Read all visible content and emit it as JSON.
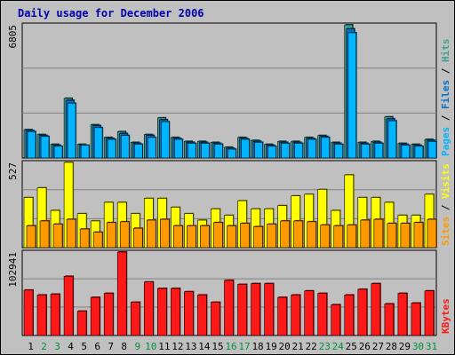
{
  "chart_data": {
    "type": "bar",
    "title": "Daily usage for December 2006",
    "categories": [
      "1",
      "2",
      "3",
      "4",
      "5",
      "6",
      "7",
      "8",
      "9",
      "10",
      "11",
      "12",
      "13",
      "14",
      "15",
      "16",
      "17",
      "18",
      "19",
      "20",
      "21",
      "22",
      "23",
      "24",
      "25",
      "26",
      "27",
      "28",
      "29",
      "30",
      "31"
    ],
    "weekend_days": [
      "2",
      "3",
      "9",
      "10",
      "16",
      "17",
      "23",
      "24",
      "30",
      "31"
    ],
    "colors": {
      "background": "#c0c0c0",
      "plot_bg": "#c0c0c0",
      "title": "#0000aa",
      "pages": "#00b4ff",
      "files": "#0070c8",
      "hits": "#3f9f8f",
      "sites": "#ff9900",
      "visits": "#ffff00",
      "kbytes": "#ff1818",
      "weekday_label": "#000000",
      "weekend_label": "#00903f"
    },
    "panels": [
      {
        "name": "Pages/Files/Hits",
        "ymax_label": "6805",
        "ymax": 6805,
        "axis_labels": [
          {
            "text": "Pages",
            "color": "#00b4ff"
          },
          {
            "text": " / ",
            "color": "#000000"
          },
          {
            "text": "Files",
            "color": "#0070c8"
          },
          {
            "text": " / ",
            "color": "#000000"
          },
          {
            "text": "Hits",
            "color": "#3f9f8f"
          }
        ],
        "series": [
          {
            "name": "Hits",
            "values": [
              1450,
              1200,
              700,
              3050,
              700,
              1700,
              1050,
              1350,
              800,
              1200,
              2050,
              1050,
              850,
              850,
              800,
              550,
              1050,
              900,
              700,
              850,
              850,
              1050,
              1150,
              800,
              6805,
              800,
              850,
              2100,
              750,
              700,
              950
            ]
          },
          {
            "name": "Files",
            "values": [
              1400,
              1150,
              650,
              2950,
              650,
              1650,
              1000,
              1250,
              750,
              1150,
              1950,
              1000,
              800,
              800,
              750,
              500,
              1000,
              850,
              650,
              800,
              800,
              1000,
              1100,
              750,
              6600,
              750,
              800,
              2000,
              700,
              650,
              900
            ]
          },
          {
            "name": "Pages",
            "values": [
              1350,
              1100,
              600,
              2800,
              650,
              1550,
              950,
              1150,
              700,
              1050,
              1850,
              950,
              750,
              750,
              700,
              450,
              950,
              800,
              600,
              750,
              750,
              950,
              1050,
              700,
              6400,
              700,
              750,
              1900,
              650,
              600,
              850
            ]
          }
        ]
      },
      {
        "name": "Sites/Visits",
        "ymax_label": "527",
        "ymax": 527,
        "axis_labels": [
          {
            "text": "Sites",
            "color": "#ff9900"
          },
          {
            "text": " / ",
            "color": "#000000"
          },
          {
            "text": "Visits",
            "color": "#ffff00"
          }
        ],
        "series": [
          {
            "name": "Visits",
            "values": [
              310,
              370,
              230,
              527,
              210,
              165,
              280,
              280,
              210,
              305,
              305,
              250,
              210,
              170,
              240,
              200,
              290,
              240,
              240,
              260,
              320,
              330,
              360,
              230,
              450,
              310,
              310,
              280,
              200,
              200,
              330
            ]
          },
          {
            "name": "Sites",
            "values": [
              135,
              165,
              145,
              175,
              115,
              95,
              155,
              160,
              120,
              170,
              175,
              135,
              135,
              135,
              155,
              135,
              150,
              130,
              145,
              165,
              165,
              160,
              140,
              135,
              140,
              170,
              175,
              150,
              150,
              155,
              175
            ]
          }
        ]
      },
      {
        "name": "KBytes",
        "ymax_label": "102941",
        "ymax": 102941,
        "axis_labels": [
          {
            "text": "KBytes",
            "color": "#ff1818"
          }
        ],
        "series": [
          {
            "name": "KBytes",
            "values": [
              56000,
              50000,
              51000,
              73000,
              30000,
              47000,
              52000,
              102941,
              41000,
              66000,
              58000,
              58000,
              54000,
              50000,
              41000,
              68000,
              63000,
              64000,
              64000,
              47000,
              50000,
              55000,
              52000,
              38000,
              50000,
              57000,
              64000,
              39000,
              52000,
              40000,
              55000
            ]
          }
        ]
      }
    ]
  }
}
